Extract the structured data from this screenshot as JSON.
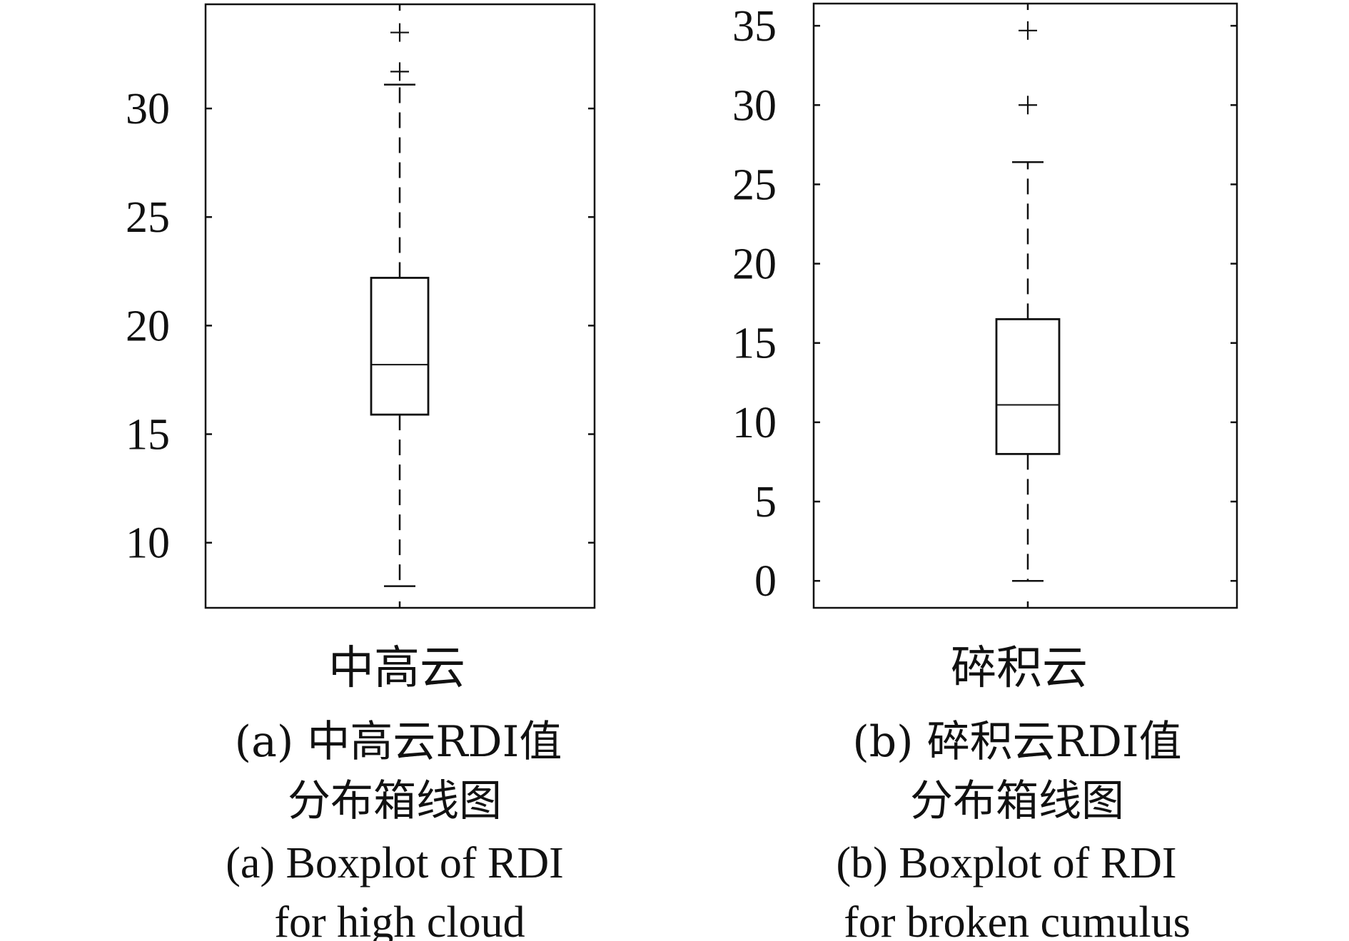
{
  "chart_data": [
    {
      "type": "boxplot",
      "category": "中高云",
      "caption_cn_1": "(a) 中高云RDI值",
      "caption_cn_2": "分布箱线图",
      "caption_en_1": "(a) Boxplot of RDI",
      "caption_en_2": "for high cloud",
      "ylim": [
        7.0,
        34.8
      ],
      "yticks": [
        10,
        15,
        20,
        25,
        30
      ],
      "ytick_labels": [
        "10",
        "15",
        "20",
        "25",
        "30"
      ],
      "box": {
        "whisker_low": 8.0,
        "q1": 15.9,
        "median": 18.2,
        "q3": 22.2,
        "whisker_high": 31.1
      },
      "outliers": [
        31.7,
        33.5
      ]
    },
    {
      "type": "boxplot",
      "category": "碎积云",
      "caption_cn_1": "(b) 碎积云RDI值",
      "caption_cn_2": "分布箱线图",
      "caption_en_1": "(b) Boxplot of RDI",
      "caption_en_2": "for broken cumulus",
      "ylim": [
        -1.7,
        36.4
      ],
      "yticks": [
        0,
        5,
        10,
        15,
        20,
        25,
        30,
        35
      ],
      "ytick_labels": [
        "0",
        "5",
        "10",
        "15",
        "20",
        "25",
        "30",
        "35"
      ],
      "box": {
        "whisker_low": 0.0,
        "q1": 8.0,
        "median": 11.1,
        "q3": 16.5,
        "whisker_high": 26.4
      },
      "outliers": [
        30.0,
        34.7
      ]
    }
  ],
  "colors": {
    "ink": "#111111",
    "background": "#ffffff"
  }
}
